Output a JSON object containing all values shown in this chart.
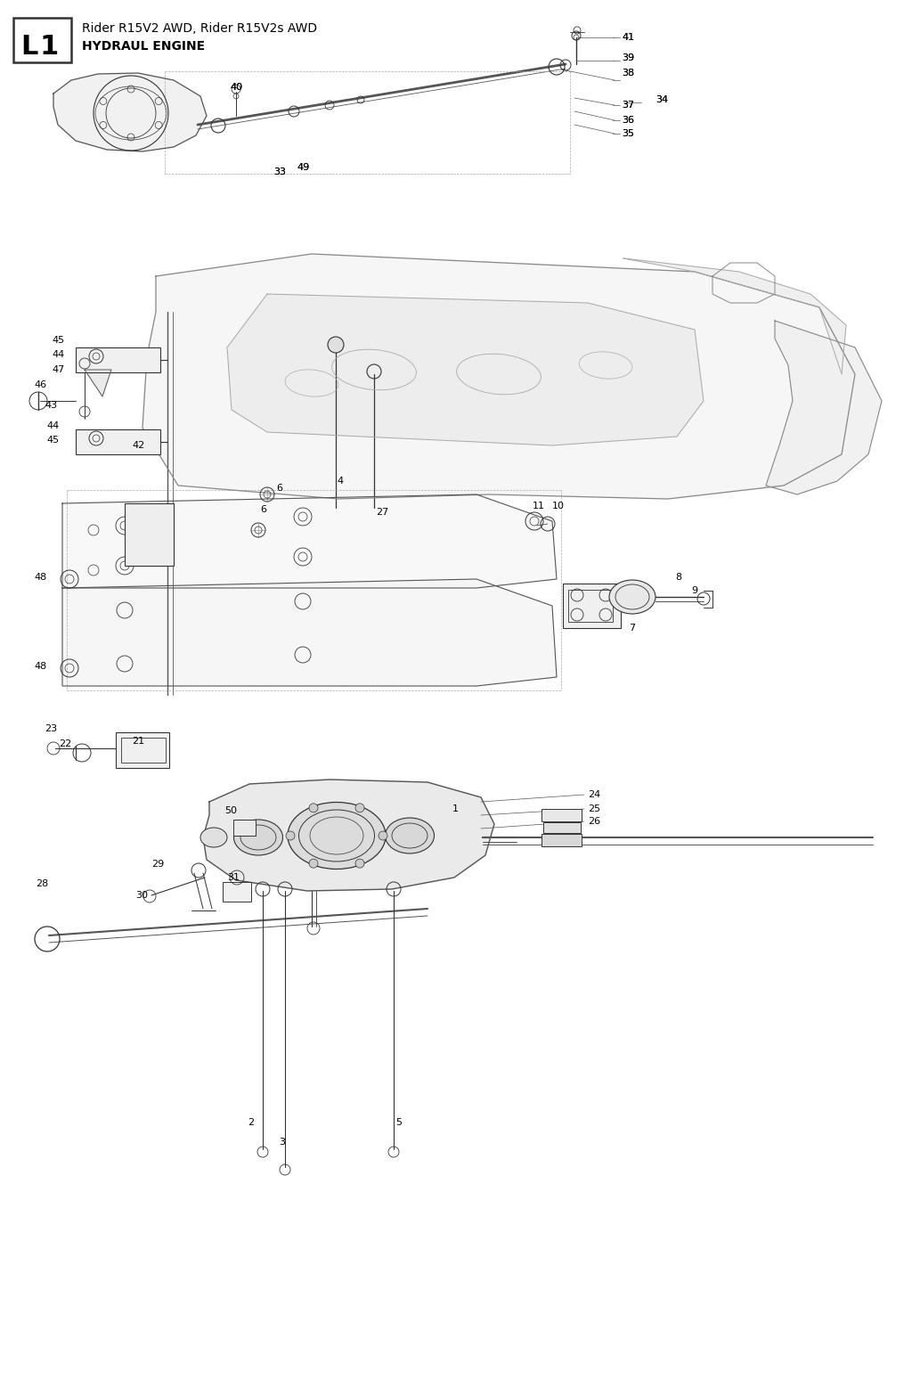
{
  "title_label": "L1",
  "subtitle_line1": "Rider R15V2 AWD, Rider R15V2s AWD",
  "subtitle_line2": "HYDRAUL ENGINE",
  "bg_color": "#ffffff",
  "line_color": "#333333",
  "dark_color": "#555555",
  "mid_color": "#888888",
  "light_color": "#aaaaaa",
  "text_color": "#000000",
  "fig_w": 10.24,
  "fig_h": 15.58,
  "dpi": 100
}
